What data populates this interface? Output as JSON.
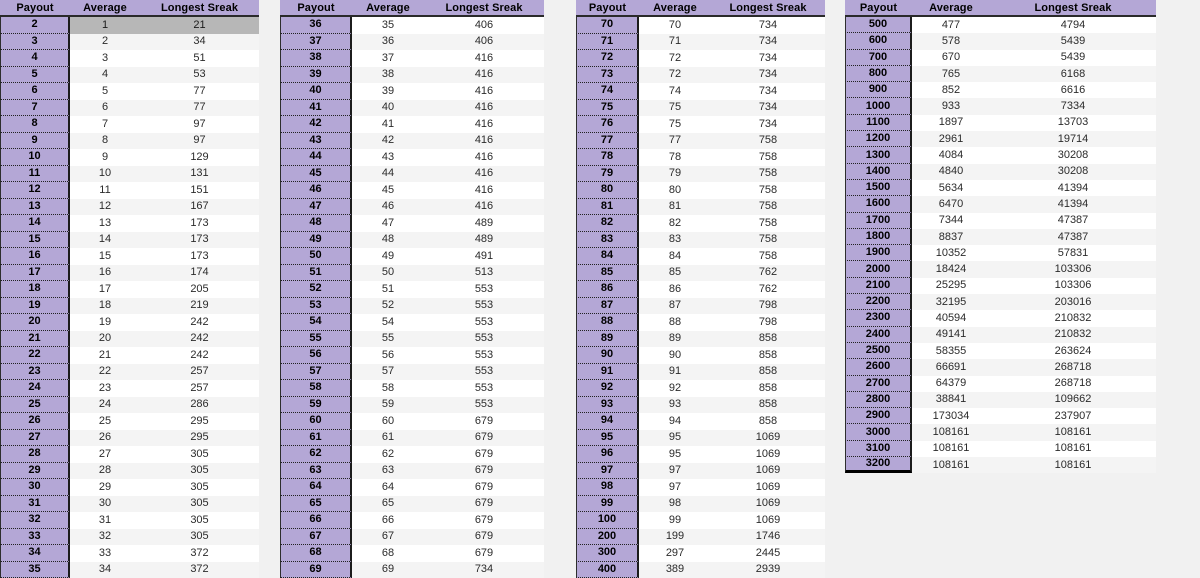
{
  "columns": [
    "Payout",
    "Average",
    "Longest Sreak"
  ],
  "colors": {
    "payout_column": "#b4a7d6",
    "header_band": "#b4a7d6",
    "selected_row": "#b7b7b7",
    "page_background": "#f1f1f1",
    "row_stripe": "#f4f4f4",
    "border_dark": "#1c1c1c"
  },
  "selection": {
    "group": 0,
    "row_payout": 2
  },
  "groups": [
    {
      "name": "payouts-2-35",
      "rows": [
        [
          2,
          1,
          21
        ],
        [
          3,
          2,
          34
        ],
        [
          4,
          3,
          51
        ],
        [
          5,
          4,
          53
        ],
        [
          6,
          5,
          77
        ],
        [
          7,
          6,
          77
        ],
        [
          8,
          7,
          97
        ],
        [
          9,
          8,
          97
        ],
        [
          10,
          9,
          129
        ],
        [
          11,
          10,
          131
        ],
        [
          12,
          11,
          151
        ],
        [
          13,
          12,
          167
        ],
        [
          14,
          13,
          173
        ],
        [
          15,
          14,
          173
        ],
        [
          16,
          15,
          173
        ],
        [
          17,
          16,
          174
        ],
        [
          18,
          17,
          205
        ],
        [
          19,
          18,
          219
        ],
        [
          20,
          19,
          242
        ],
        [
          21,
          20,
          242
        ],
        [
          22,
          21,
          242
        ],
        [
          23,
          22,
          257
        ],
        [
          24,
          23,
          257
        ],
        [
          25,
          24,
          286
        ],
        [
          26,
          25,
          295
        ],
        [
          27,
          26,
          295
        ],
        [
          28,
          27,
          305
        ],
        [
          29,
          28,
          305
        ],
        [
          30,
          29,
          305
        ],
        [
          31,
          30,
          305
        ],
        [
          32,
          31,
          305
        ],
        [
          33,
          32,
          305
        ],
        [
          34,
          33,
          372
        ],
        [
          35,
          34,
          372
        ]
      ]
    },
    {
      "name": "payouts-36-69",
      "rows": [
        [
          36,
          35,
          406
        ],
        [
          37,
          36,
          406
        ],
        [
          38,
          37,
          416
        ],
        [
          39,
          38,
          416
        ],
        [
          40,
          39,
          416
        ],
        [
          41,
          40,
          416
        ],
        [
          42,
          41,
          416
        ],
        [
          43,
          42,
          416
        ],
        [
          44,
          43,
          416
        ],
        [
          45,
          44,
          416
        ],
        [
          46,
          45,
          416
        ],
        [
          47,
          46,
          416
        ],
        [
          48,
          47,
          489
        ],
        [
          49,
          48,
          489
        ],
        [
          50,
          49,
          491
        ],
        [
          51,
          50,
          513
        ],
        [
          52,
          51,
          553
        ],
        [
          53,
          52,
          553
        ],
        [
          54,
          54,
          553
        ],
        [
          55,
          55,
          553
        ],
        [
          56,
          56,
          553
        ],
        [
          57,
          57,
          553
        ],
        [
          58,
          58,
          553
        ],
        [
          59,
          59,
          553
        ],
        [
          60,
          60,
          679
        ],
        [
          61,
          61,
          679
        ],
        [
          62,
          62,
          679
        ],
        [
          63,
          63,
          679
        ],
        [
          64,
          64,
          679
        ],
        [
          65,
          65,
          679
        ],
        [
          66,
          66,
          679
        ],
        [
          67,
          67,
          679
        ],
        [
          68,
          68,
          679
        ],
        [
          69,
          69,
          734
        ]
      ]
    },
    {
      "name": "payouts-70-400",
      "rows": [
        [
          70,
          70,
          734
        ],
        [
          71,
          71,
          734
        ],
        [
          72,
          72,
          734
        ],
        [
          73,
          72,
          734
        ],
        [
          74,
          74,
          734
        ],
        [
          75,
          75,
          734
        ],
        [
          76,
          75,
          734
        ],
        [
          77,
          77,
          758
        ],
        [
          78,
          78,
          758
        ],
        [
          79,
          79,
          758
        ],
        [
          80,
          80,
          758
        ],
        [
          81,
          81,
          758
        ],
        [
          82,
          82,
          758
        ],
        [
          83,
          83,
          758
        ],
        [
          84,
          84,
          758
        ],
        [
          85,
          85,
          762
        ],
        [
          86,
          86,
          762
        ],
        [
          87,
          87,
          798
        ],
        [
          88,
          88,
          798
        ],
        [
          89,
          89,
          858
        ],
        [
          90,
          90,
          858
        ],
        [
          91,
          91,
          858
        ],
        [
          92,
          92,
          858
        ],
        [
          93,
          93,
          858
        ],
        [
          94,
          94,
          858
        ],
        [
          95,
          95,
          1069
        ],
        [
          96,
          95,
          1069
        ],
        [
          97,
          97,
          1069
        ],
        [
          98,
          97,
          1069
        ],
        [
          99,
          98,
          1069
        ],
        [
          100,
          99,
          1069
        ],
        [
          200,
          199,
          1746
        ],
        [
          300,
          297,
          2445
        ],
        [
          400,
          389,
          2939
        ]
      ]
    },
    {
      "name": "payouts-500-3200",
      "rows": [
        [
          500,
          477,
          4794
        ],
        [
          600,
          578,
          5439
        ],
        [
          700,
          670,
          5439
        ],
        [
          800,
          765,
          6168
        ],
        [
          900,
          852,
          6616
        ],
        [
          1000,
          933,
          7334
        ],
        [
          1100,
          1897,
          13703
        ],
        [
          1200,
          2961,
          19714
        ],
        [
          1300,
          4084,
          30208
        ],
        [
          1400,
          4840,
          30208
        ],
        [
          1500,
          5634,
          41394
        ],
        [
          1600,
          6470,
          41394
        ],
        [
          1700,
          7344,
          47387
        ],
        [
          1800,
          8837,
          47387
        ],
        [
          1900,
          10352,
          57831
        ],
        [
          2000,
          18424,
          103306
        ],
        [
          2100,
          25295,
          103306
        ],
        [
          2200,
          32195,
          203016
        ],
        [
          2300,
          40594,
          210832
        ],
        [
          2400,
          49141,
          210832
        ],
        [
          2500,
          58355,
          263624
        ],
        [
          2600,
          66691,
          268718
        ],
        [
          2700,
          64379,
          268718
        ],
        [
          2800,
          38841,
          109662
        ],
        [
          2900,
          173034,
          237907
        ],
        [
          3000,
          108161,
          108161
        ],
        [
          3100,
          108161,
          108161
        ],
        [
          3200,
          108161,
          108161
        ]
      ]
    }
  ]
}
